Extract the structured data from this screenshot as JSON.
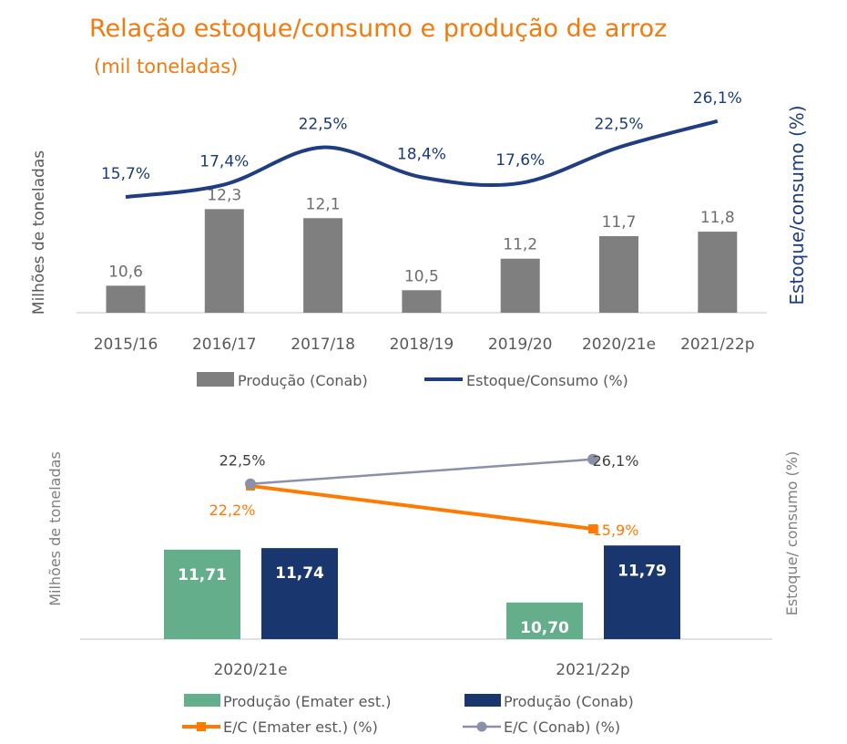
{
  "title": "Relação estoque/consumo e produção de arroz",
  "subtitle": "(mil toneladas)",
  "chart_data": [
    {
      "type": "bar+line",
      "categories": [
        "2015/16",
        "2016/17",
        "2017/18",
        "2018/19",
        "2019/20",
        "2020/21e",
        "2021/22p"
      ],
      "series": [
        {
          "name": "Produção (Conab)",
          "type": "bar",
          "axis": "left",
          "color": "#7f7f7f",
          "values": [
            10.6,
            12.3,
            12.1,
            10.5,
            11.2,
            11.7,
            11.8
          ],
          "labels": [
            "10,6",
            "12,3",
            "12,1",
            "10,5",
            "11,2",
            "11,7",
            "11,8"
          ]
        },
        {
          "name": "Estoque/Consumo (%)",
          "type": "line",
          "smooth": true,
          "axis": "right",
          "color": "#1f3e82",
          "values": [
            15.7,
            17.4,
            22.5,
            18.4,
            17.6,
            22.5,
            26.1
          ],
          "labels": [
            "15,7%",
            "17,4%",
            "22,5%",
            "18,4%",
            "17,6%",
            "22,5%",
            "26,1%"
          ]
        }
      ],
      "ylabel": "Milhões de toneladas",
      "y2label": "Estoque/consumo (%)",
      "ylim": [
        10,
        13
      ],
      "y2lim": [
        0,
        30
      ],
      "legend": "bottom",
      "grid": false
    },
    {
      "type": "bar+line",
      "categories": [
        "2020/21e",
        "2021/22p"
      ],
      "series": [
        {
          "name": "Produção (Emater est.)",
          "type": "bar",
          "axis": "left",
          "color": "#64ae8c",
          "values": [
            11.71,
            10.7
          ],
          "labels": [
            "11,71",
            "10,70"
          ]
        },
        {
          "name": "Produção (Conab)",
          "type": "bar",
          "axis": "left",
          "color": "#1a366e",
          "values": [
            11.74,
            11.79
          ],
          "labels": [
            "11,74",
            "11,79"
          ]
        },
        {
          "name": "E/C (Emater est.) (%)",
          "type": "line",
          "marker": "square",
          "axis": "right",
          "color": "#ff7a00",
          "values": [
            22.2,
            15.9
          ],
          "labels": [
            "22,2%",
            "15,9%"
          ]
        },
        {
          "name": "E/C (Conab) (%)",
          "type": "line",
          "marker": "circle",
          "axis": "right",
          "color": "#8a90aa",
          "values": [
            22.5,
            26.1
          ],
          "labels": [
            "22,5%",
            "26,1%"
          ]
        }
      ],
      "ylabel": "Milhões de toneladas",
      "y2label": "Estoque/ consumo (%)",
      "ylim": [
        10,
        12
      ],
      "y2lim": [
        0,
        30
      ],
      "legend": "bottom",
      "grid": false
    }
  ]
}
